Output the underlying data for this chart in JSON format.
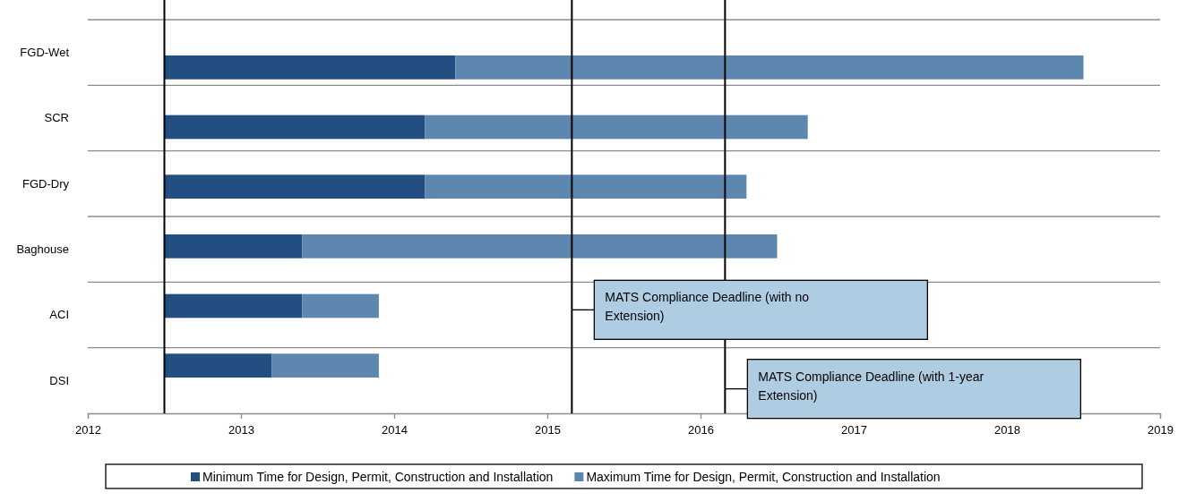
{
  "chart_data": {
    "type": "bar",
    "orientation": "horizontal",
    "categories": [
      "FGD-Wet",
      "SCR",
      "FGD-Dry",
      "Baghouse",
      "ACI",
      "DSI"
    ],
    "series": [
      {
        "name": "Minimum Time for Design, Permit, Construction and Installation",
        "color": "#234e82",
        "base": [
          2012.5,
          2012.5,
          2012.5,
          2012.5,
          2012.5,
          2012.5
        ],
        "values": [
          1.9,
          1.7,
          1.7,
          0.9,
          0.9,
          0.7
        ]
      },
      {
        "name": "Maximum Time for Design, Permit, Construction and Installation",
        "color": "#5d87ae",
        "base": [
          2014.4,
          2014.2,
          2014.2,
          2013.4,
          2013.4,
          2013.2
        ],
        "values": [
          4.1,
          2.5,
          2.1,
          3.1,
          0.5,
          0.7
        ]
      }
    ],
    "xlim": [
      2012,
      2019
    ],
    "xticks": [
      2012,
      2013,
      2014,
      2015,
      2016,
      2017,
      2018,
      2019
    ],
    "grid": "y",
    "legend": "bottom",
    "ref_lines": [
      {
        "axis": "x",
        "value": 2012.5,
        "color": "#000000"
      },
      {
        "axis": "x",
        "value": 2015.16,
        "label": "MATS Compliance Deadline (with no Extension)",
        "color": "#000000"
      },
      {
        "axis": "x",
        "value": 2016.16,
        "label": "MATS Compliance Deadline (with 1-year Extension)",
        "color": "#000000"
      }
    ]
  }
}
